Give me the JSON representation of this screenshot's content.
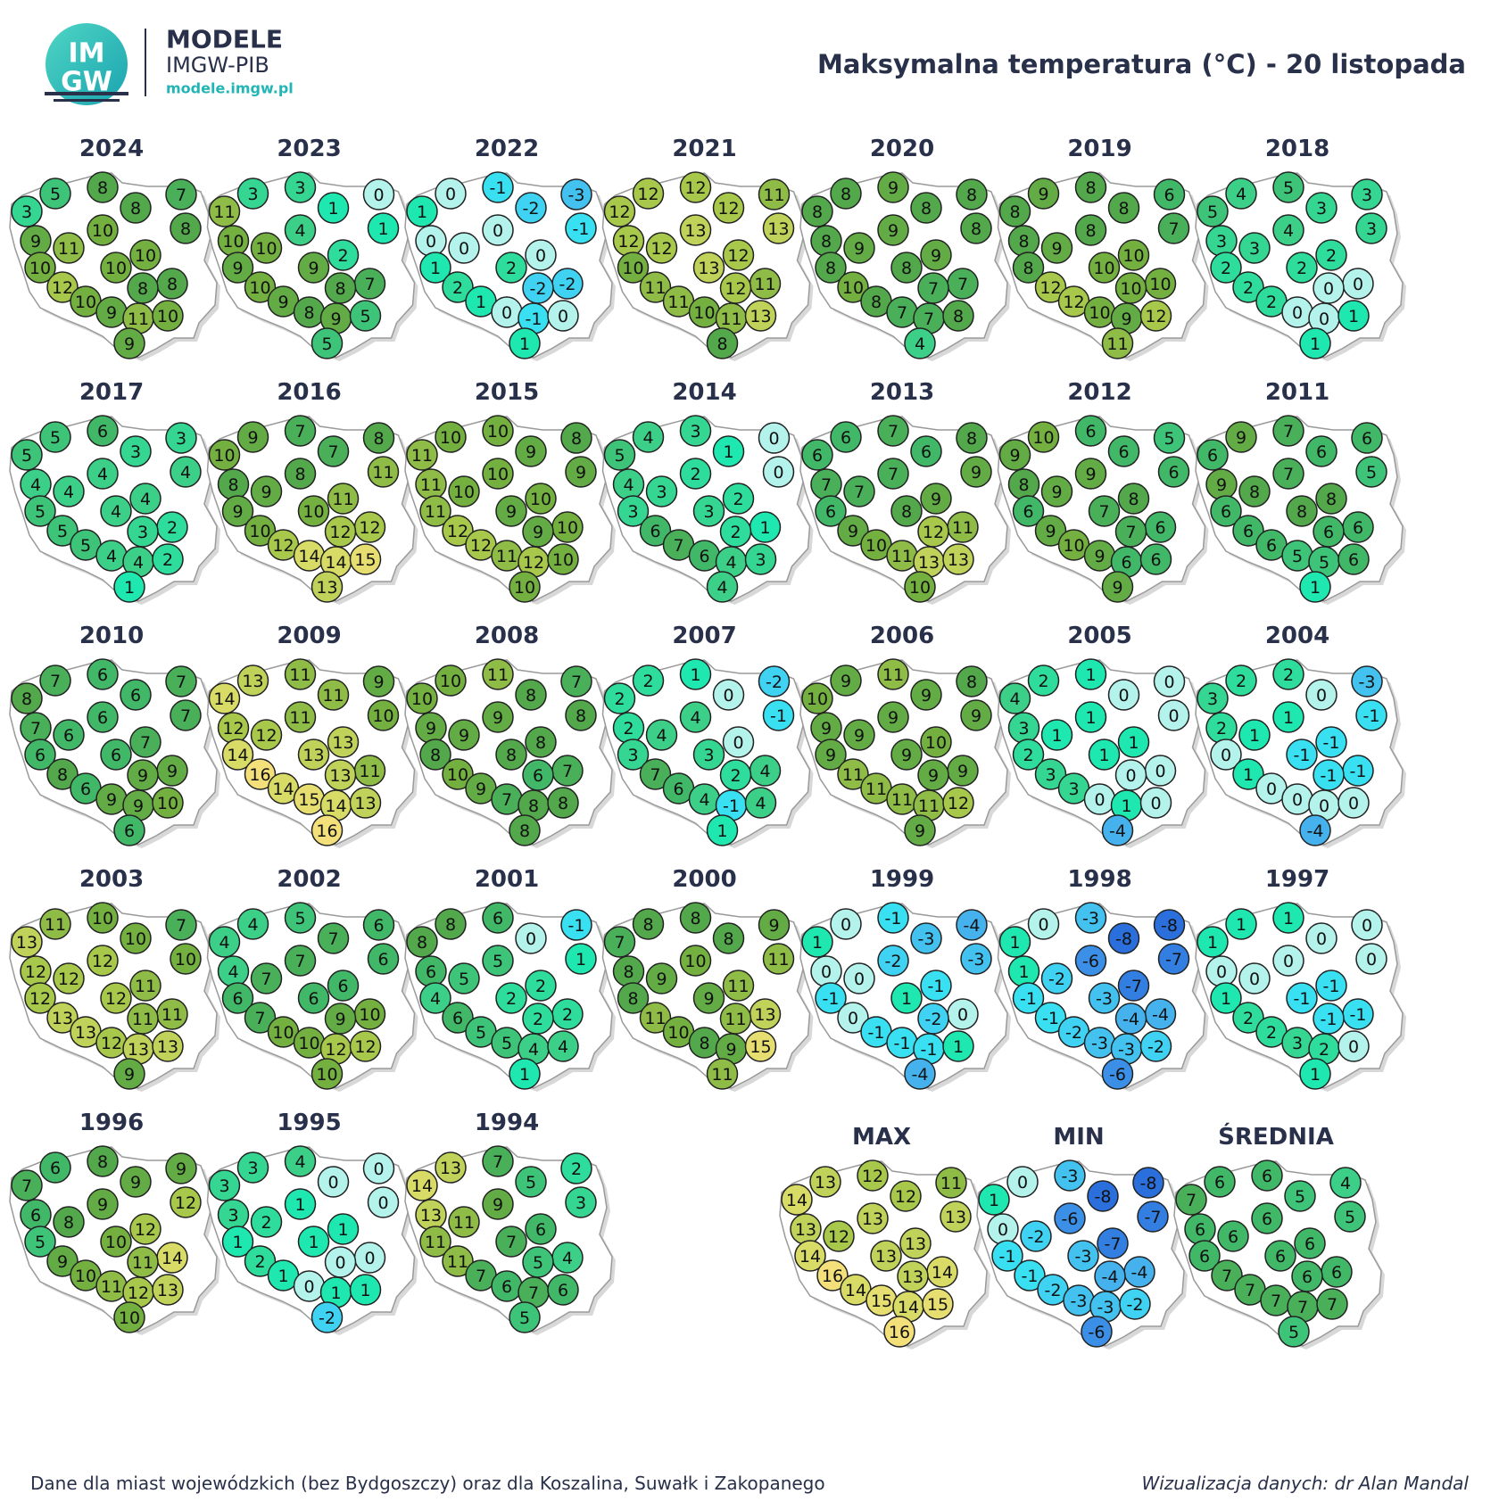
{
  "header": {
    "logo_mark_top": "IM",
    "logo_mark_bottom": "GW",
    "logo_title": "MODELE",
    "logo_subtitle": "IMGW-PIB",
    "logo_url": "modele.imgw.pl",
    "title": "Maksymalna temperatura (°C) - 20 listopada"
  },
  "maps": [
    {
      "title": "2024",
      "values": [
        3,
        5,
        8,
        8,
        7,
        8,
        10,
        9,
        11,
        10,
        10,
        10,
        8,
        8,
        12,
        10,
        9,
        11,
        10,
        9
      ]
    },
    {
      "title": "2023",
      "values": [
        11,
        3,
        3,
        1,
        0,
        1,
        4,
        10,
        10,
        2,
        9,
        9,
        7,
        8,
        10,
        9,
        8,
        9,
        5,
        5
      ]
    },
    {
      "title": "2022",
      "values": [
        1,
        0,
        -1,
        -2,
        -3,
        -1,
        0,
        0,
        0,
        0,
        2,
        1,
        -2,
        -2,
        2,
        1,
        0,
        -1,
        0,
        1
      ]
    },
    {
      "title": "2021",
      "values": [
        12,
        12,
        12,
        12,
        11,
        13,
        13,
        12,
        12,
        12,
        13,
        10,
        11,
        12,
        11,
        11,
        10,
        11,
        13,
        8
      ]
    },
    {
      "title": "2020",
      "values": [
        8,
        8,
        9,
        8,
        8,
        8,
        9,
        8,
        9,
        9,
        8,
        8,
        7,
        7,
        10,
        8,
        7,
        7,
        8,
        4
      ]
    },
    {
      "title": "2019",
      "values": [
        8,
        9,
        8,
        8,
        6,
        7,
        8,
        8,
        9,
        10,
        10,
        8,
        10,
        10,
        12,
        12,
        10,
        9,
        12,
        11
      ]
    },
    {
      "title": "2018",
      "values": [
        5,
        4,
        5,
        3,
        3,
        3,
        4,
        3,
        3,
        2,
        2,
        2,
        0,
        0,
        2,
        2,
        0,
        0,
        1,
        1
      ]
    },
    {
      "title": "2017",
      "values": [
        5,
        5,
        6,
        3,
        3,
        4,
        4,
        4,
        4,
        4,
        4,
        5,
        2,
        3,
        5,
        5,
        4,
        4,
        2,
        1
      ]
    },
    {
      "title": "2016",
      "values": [
        10,
        9,
        7,
        7,
        8,
        11,
        8,
        8,
        9,
        11,
        10,
        9,
        12,
        12,
        10,
        12,
        14,
        14,
        15,
        13
      ]
    },
    {
      "title": "2015",
      "values": [
        11,
        10,
        10,
        9,
        8,
        9,
        10,
        11,
        10,
        10,
        9,
        11,
        10,
        9,
        12,
        12,
        11,
        12,
        10,
        10
      ]
    },
    {
      "title": "2014",
      "values": [
        5,
        4,
        3,
        1,
        0,
        0,
        2,
        4,
        3,
        2,
        3,
        3,
        1,
        2,
        6,
        7,
        6,
        4,
        3,
        4
      ]
    },
    {
      "title": "2013",
      "values": [
        6,
        6,
        7,
        6,
        8,
        9,
        7,
        7,
        7,
        9,
        8,
        6,
        11,
        12,
        9,
        10,
        11,
        13,
        13,
        10
      ]
    },
    {
      "title": "2012",
      "values": [
        9,
        10,
        6,
        6,
        5,
        6,
        9,
        8,
        9,
        8,
        7,
        6,
        6,
        7,
        9,
        10,
        9,
        6,
        6,
        9
      ]
    },
    {
      "title": "2011",
      "values": [
        6,
        9,
        7,
        6,
        6,
        5,
        7,
        9,
        8,
        8,
        8,
        6,
        6,
        6,
        6,
        6,
        5,
        5,
        6,
        1
      ]
    },
    {
      "title": "2010",
      "values": [
        8,
        7,
        6,
        6,
        7,
        7,
        6,
        7,
        6,
        7,
        6,
        6,
        9,
        9,
        8,
        6,
        9,
        9,
        10,
        6
      ]
    },
    {
      "title": "2009",
      "values": [
        14,
        13,
        11,
        11,
        9,
        10,
        11,
        12,
        12,
        13,
        13,
        14,
        11,
        13,
        16,
        14,
        15,
        14,
        13,
        16
      ]
    },
    {
      "title": "2008",
      "values": [
        10,
        10,
        11,
        8,
        7,
        8,
        9,
        9,
        9,
        8,
        8,
        8,
        7,
        6,
        10,
        9,
        7,
        8,
        8,
        8
      ]
    },
    {
      "title": "2007",
      "values": [
        2,
        2,
        1,
        0,
        -2,
        -1,
        4,
        2,
        4,
        0,
        3,
        3,
        4,
        2,
        7,
        6,
        4,
        -1,
        4,
        1
      ]
    },
    {
      "title": "2006",
      "values": [
        10,
        9,
        11,
        9,
        8,
        9,
        9,
        9,
        9,
        10,
        9,
        9,
        9,
        9,
        11,
        11,
        11,
        11,
        12,
        9
      ]
    },
    {
      "title": "2005",
      "values": [
        4,
        2,
        1,
        0,
        0,
        0,
        1,
        3,
        1,
        1,
        1,
        2,
        0,
        0,
        3,
        3,
        0,
        1,
        0,
        -4
      ]
    },
    {
      "title": "2004",
      "values": [
        3,
        2,
        2,
        0,
        -3,
        -1,
        1,
        2,
        1,
        -1,
        -1,
        0,
        -1,
        -1,
        1,
        0,
        0,
        0,
        0,
        -4
      ]
    },
    {
      "title": "2003",
      "values": [
        13,
        11,
        10,
        10,
        7,
        10,
        12,
        12,
        12,
        11,
        12,
        12,
        11,
        11,
        13,
        13,
        12,
        13,
        13,
        9
      ]
    },
    {
      "title": "2002",
      "values": [
        4,
        4,
        5,
        7,
        6,
        6,
        7,
        4,
        7,
        6,
        6,
        6,
        10,
        9,
        7,
        10,
        10,
        12,
        12,
        10
      ]
    },
    {
      "title": "2001",
      "values": [
        8,
        8,
        6,
        0,
        -1,
        1,
        5,
        6,
        5,
        2,
        2,
        4,
        2,
        2,
        6,
        5,
        5,
        4,
        4,
        1
      ]
    },
    {
      "title": "2000",
      "values": [
        7,
        8,
        8,
        8,
        9,
        11,
        10,
        8,
        9,
        11,
        9,
        8,
        13,
        11,
        11,
        10,
        8,
        9,
        15,
        11
      ]
    },
    {
      "title": "1999",
      "values": [
        1,
        0,
        -1,
        -3,
        -4,
        -3,
        -2,
        0,
        0,
        -1,
        1,
        -1,
        0,
        -2,
        0,
        -1,
        -1,
        -1,
        1,
        -4
      ]
    },
    {
      "title": "1998",
      "values": [
        1,
        0,
        -3,
        -8,
        -8,
        -7,
        -6,
        1,
        -2,
        -7,
        -3,
        -1,
        -4,
        -4,
        -1,
        -2,
        -3,
        -3,
        -2,
        -6
      ]
    },
    {
      "title": "1997",
      "values": [
        1,
        1,
        1,
        0,
        0,
        0,
        0,
        0,
        0,
        -1,
        -1,
        1,
        -1,
        -1,
        2,
        2,
        3,
        2,
        0,
        1
      ]
    },
    {
      "title": "1996",
      "values": [
        7,
        6,
        8,
        9,
        9,
        12,
        9,
        6,
        8,
        12,
        10,
        5,
        14,
        11,
        9,
        10,
        11,
        12,
        13,
        10
      ]
    },
    {
      "title": "1995",
      "values": [
        3,
        3,
        4,
        0,
        0,
        0,
        1,
        3,
        2,
        1,
        1,
        1,
        0,
        0,
        2,
        1,
        0,
        1,
        1,
        -2
      ]
    },
    {
      "title": "1994",
      "values": [
        14,
        13,
        7,
        5,
        2,
        3,
        9,
        13,
        11,
        6,
        7,
        11,
        4,
        5,
        11,
        7,
        6,
        7,
        6,
        5
      ]
    },
    {
      "title": "MAX",
      "values": [
        14,
        13,
        12,
        12,
        11,
        13,
        13,
        13,
        12,
        13,
        13,
        14,
        14,
        13,
        16,
        14,
        15,
        14,
        15,
        16
      ]
    },
    {
      "title": "MIN",
      "values": [
        1,
        0,
        -3,
        -8,
        -8,
        -7,
        -6,
        0,
        -2,
        -7,
        -3,
        -1,
        -4,
        -4,
        -1,
        -2,
        -3,
        -3,
        -2,
        -6
      ]
    },
    {
      "title": "ŚREDNIA",
      "values": [
        7,
        6,
        6,
        5,
        4,
        5,
        6,
        6,
        6,
        6,
        6,
        6,
        6,
        6,
        7,
        7,
        7,
        7,
        7,
        5
      ]
    }
  ],
  "footer": {
    "left": "Dane dla miast wojewódzkich (bez Bydgoszczy) oraz dla Koszalina, Suwałk i Zakopanego",
    "right": "Wizualizacja danych: dr Alan Mandal"
  }
}
